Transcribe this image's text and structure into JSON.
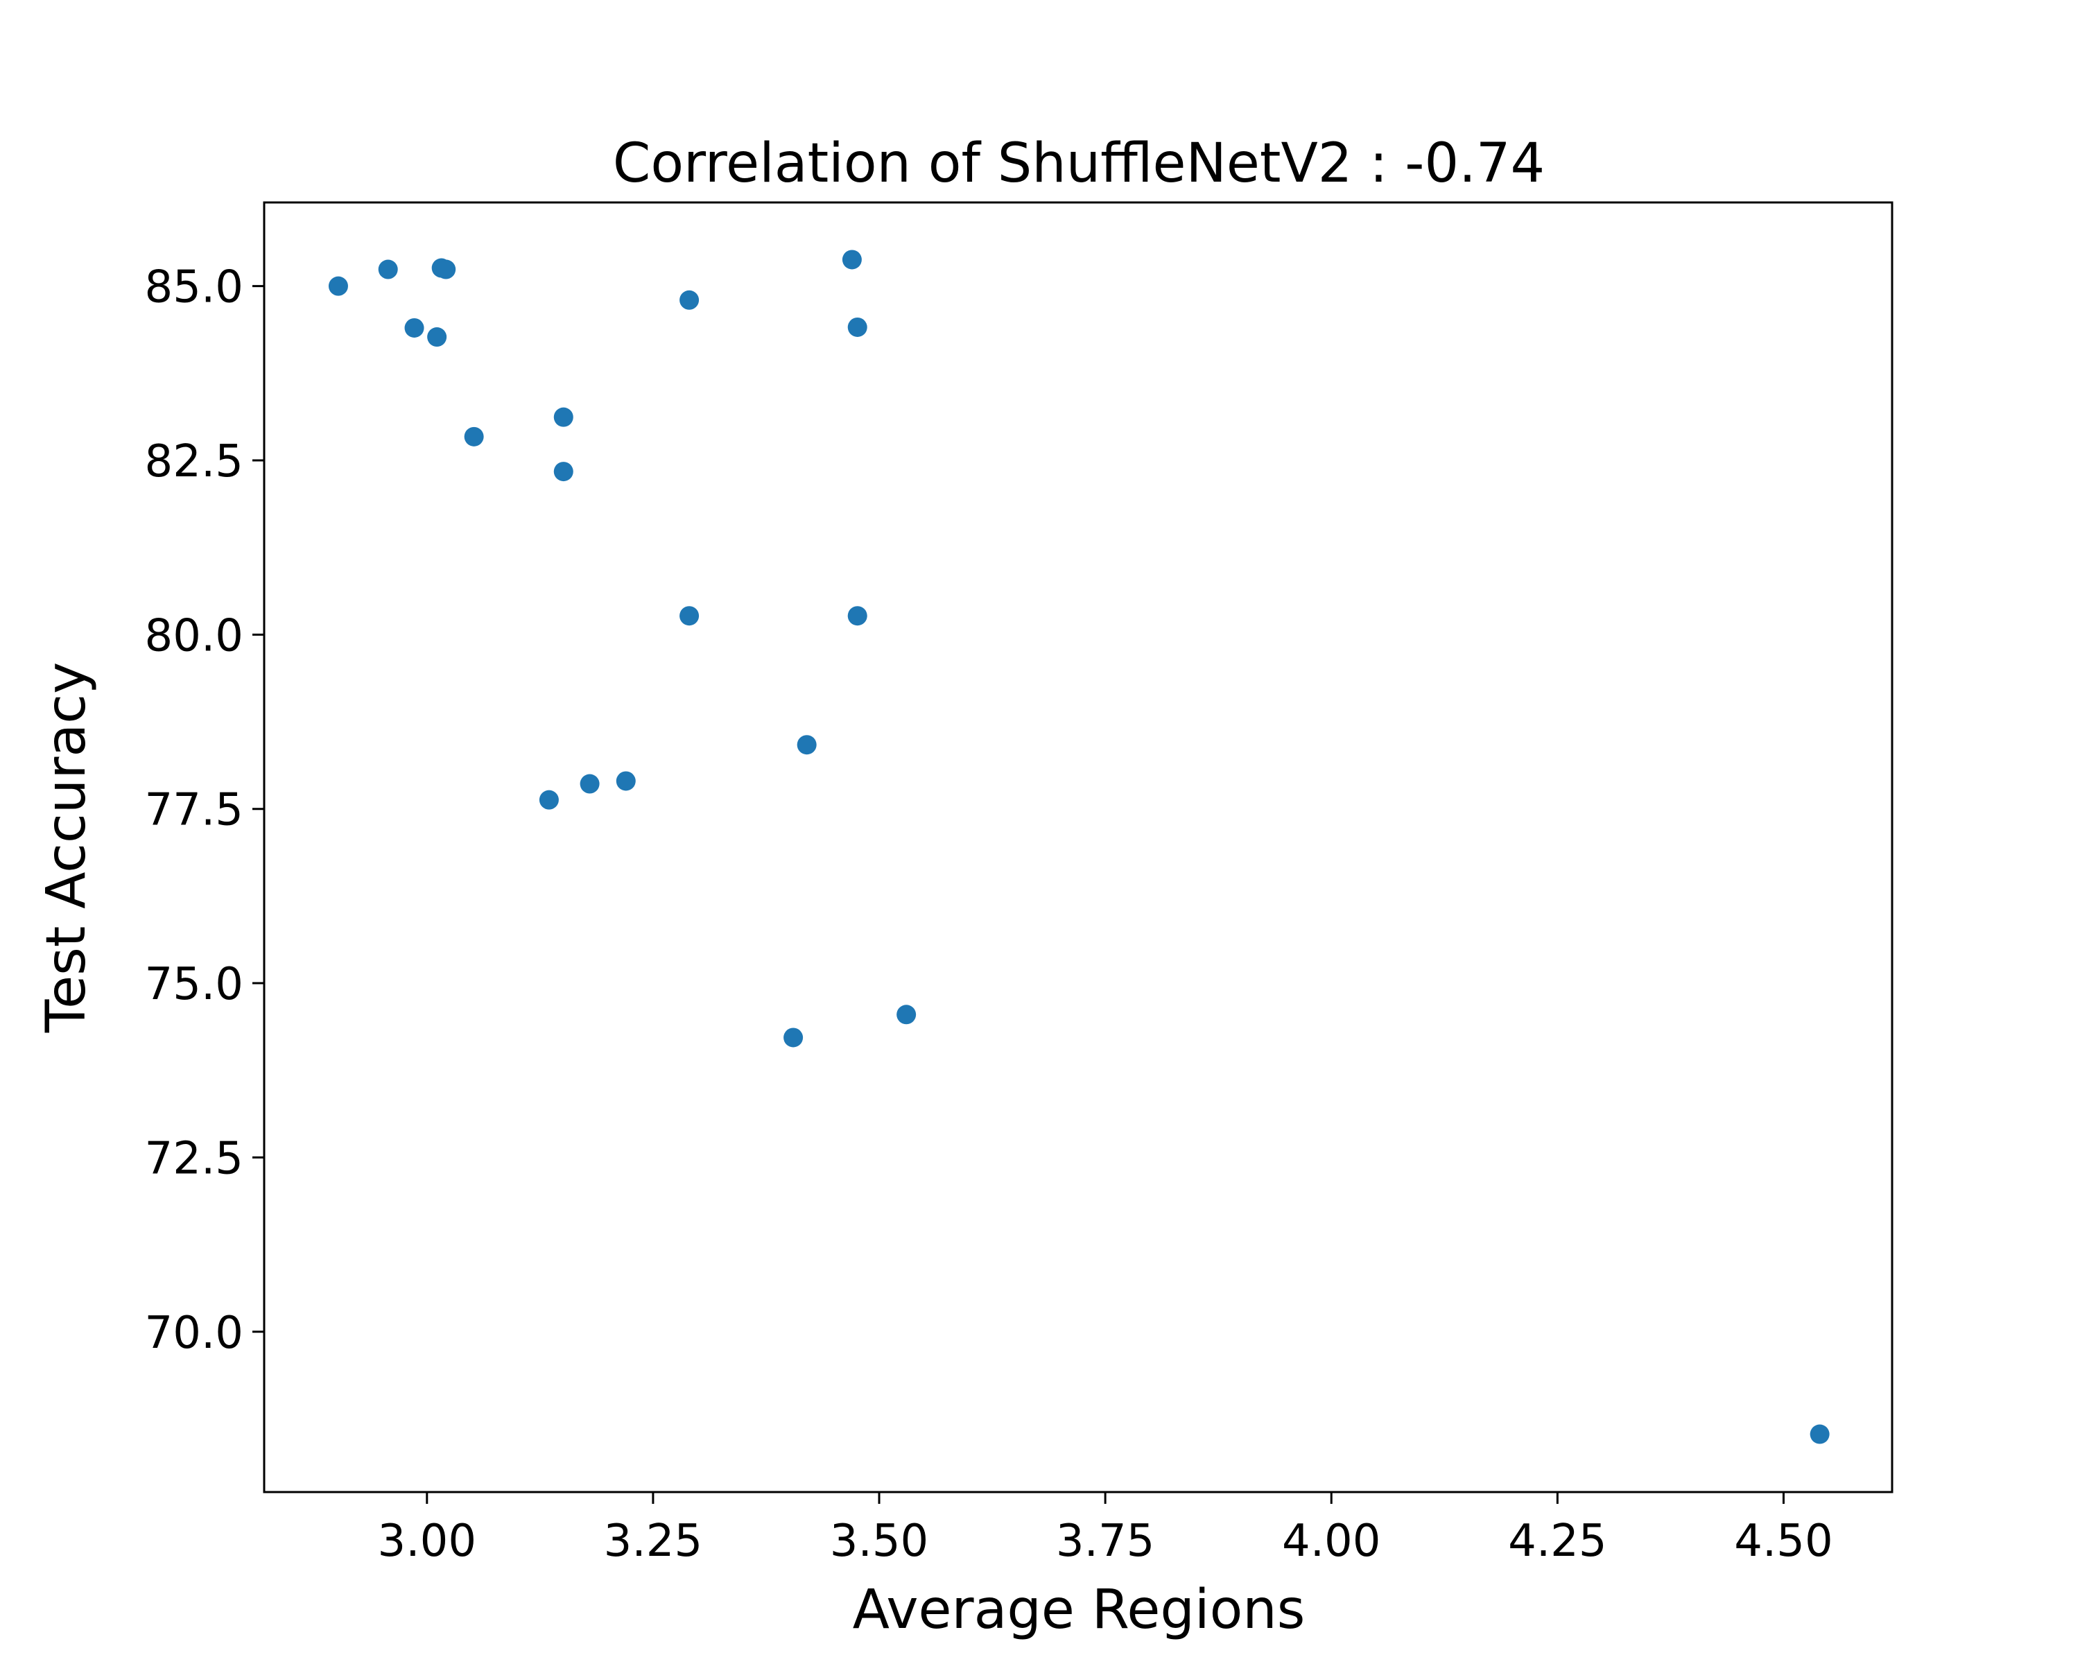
{
  "chart_data": {
    "type": "scatter",
    "title": "Correlation of ShuffleNetV2 : -0.74",
    "xlabel": "Average Regions",
    "ylabel": "Test Accuracy",
    "xlim": [
      2.82,
      4.62
    ],
    "ylim": [
      67.7,
      86.2
    ],
    "xticks": [
      {
        "value": 3.0,
        "label": "3.00"
      },
      {
        "value": 3.25,
        "label": "3.25"
      },
      {
        "value": 3.5,
        "label": "3.50"
      },
      {
        "value": 3.75,
        "label": "3.75"
      },
      {
        "value": 4.0,
        "label": "4.00"
      },
      {
        "value": 4.25,
        "label": "4.25"
      },
      {
        "value": 4.5,
        "label": "4.50"
      }
    ],
    "yticks": [
      {
        "value": 70.0,
        "label": "70.0"
      },
      {
        "value": 72.5,
        "label": "72.5"
      },
      {
        "value": 75.0,
        "label": "75.0"
      },
      {
        "value": 77.5,
        "label": "77.5"
      },
      {
        "value": 80.0,
        "label": "80.0"
      },
      {
        "value": 82.5,
        "label": "82.5"
      },
      {
        "value": 85.0,
        "label": "85.0"
      }
    ],
    "grid": false,
    "marker_color": "#1f77b4",
    "series": [
      {
        "points": [
          {
            "x": 2.902,
            "y": 85.0
          },
          {
            "x": 2.957,
            "y": 85.24
          },
          {
            "x": 2.986,
            "y": 84.4
          },
          {
            "x": 3.011,
            "y": 84.27
          },
          {
            "x": 3.016,
            "y": 85.26
          },
          {
            "x": 3.021,
            "y": 85.24
          },
          {
            "x": 3.052,
            "y": 82.84
          },
          {
            "x": 3.151,
            "y": 83.12
          },
          {
            "x": 3.151,
            "y": 82.34
          },
          {
            "x": 3.135,
            "y": 77.63
          },
          {
            "x": 3.18,
            "y": 77.86
          },
          {
            "x": 3.22,
            "y": 77.9
          },
          {
            "x": 3.29,
            "y": 84.8
          },
          {
            "x": 3.29,
            "y": 80.27
          },
          {
            "x": 3.405,
            "y": 74.22
          },
          {
            "x": 3.42,
            "y": 78.42
          },
          {
            "x": 3.47,
            "y": 85.38
          },
          {
            "x": 3.476,
            "y": 84.41
          },
          {
            "x": 3.476,
            "y": 80.27
          },
          {
            "x": 3.53,
            "y": 74.55
          },
          {
            "x": 4.54,
            "y": 68.53
          }
        ]
      }
    ]
  }
}
